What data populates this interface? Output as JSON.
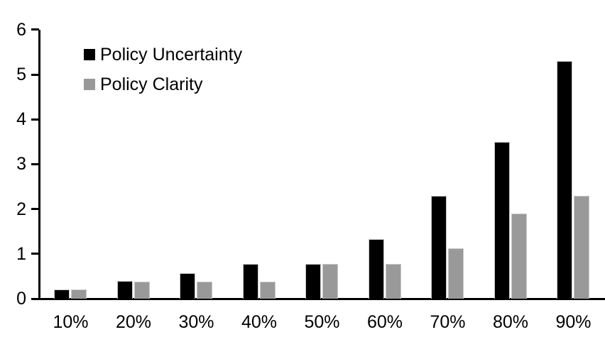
{
  "chart_data": {
    "type": "bar",
    "categories": [
      "10%",
      "20%",
      "30%",
      "40%",
      "50%",
      "60%",
      "70%",
      "80%",
      "90%"
    ],
    "series": [
      {
        "name": "Policy Uncertainty",
        "color": "#000000",
        "values": [
          0.2,
          0.4,
          0.57,
          0.77,
          0.78,
          1.33,
          2.3,
          3.5,
          5.3
        ]
      },
      {
        "name": "Policy Clarity",
        "color": "#999999",
        "values": [
          0.2,
          0.38,
          0.38,
          0.38,
          0.77,
          0.77,
          1.13,
          1.9,
          2.3
        ]
      }
    ],
    "ylim": [
      0,
      6
    ],
    "yticks": [
      0,
      1,
      2,
      3,
      4,
      5,
      6
    ],
    "grid": false,
    "legend_position": "top-left",
    "axis_color": "#000000",
    "bar_border_color": "#c8c8c8",
    "background": "#ffffff"
  }
}
